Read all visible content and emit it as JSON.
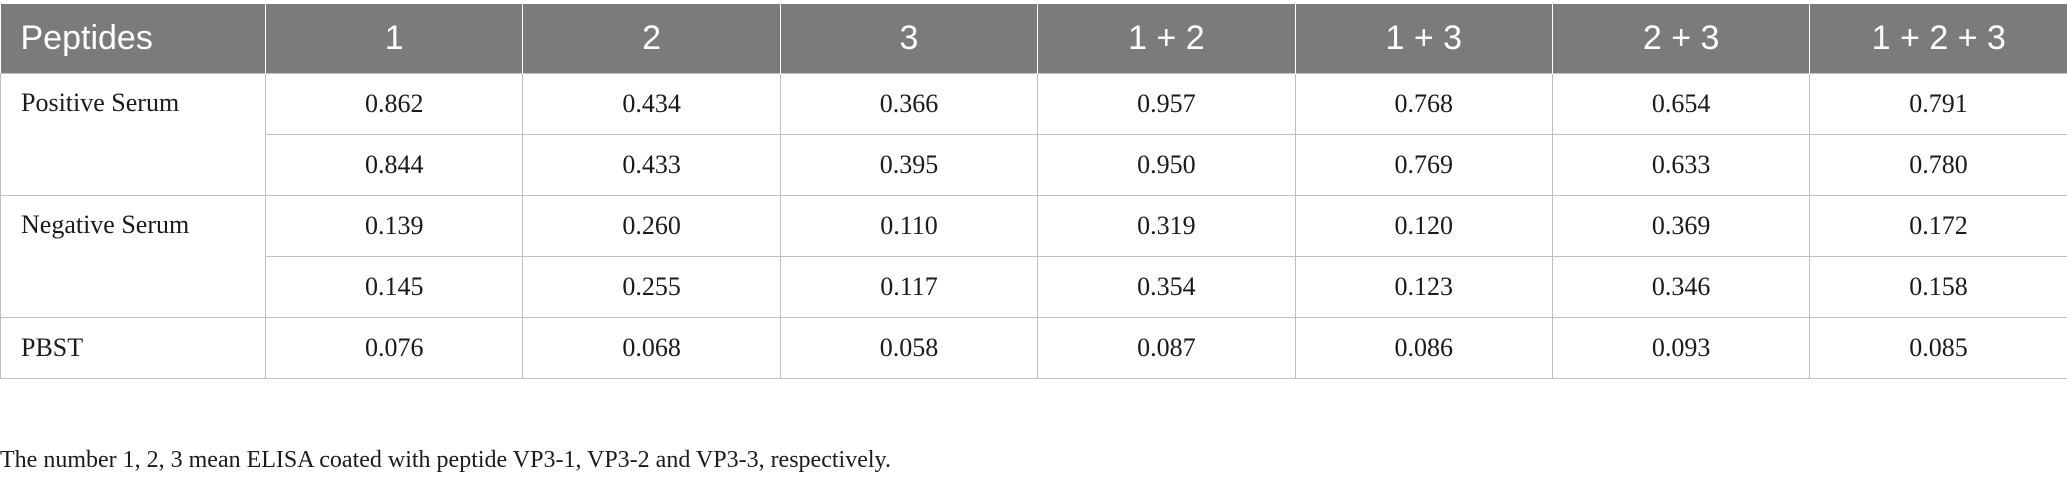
{
  "table": {
    "headers": [
      "Peptides",
      "1",
      "2",
      "3",
      "1 + 2",
      "1 + 3",
      "2 + 3",
      "1 + 2 + 3"
    ],
    "groups": [
      {
        "label": "Positive Serum",
        "rows": [
          [
            "0.862",
            "0.434",
            "0.366",
            "0.957",
            "0.768",
            "0.654",
            "0.791"
          ],
          [
            "0.844",
            "0.433",
            "0.395",
            "0.950",
            "0.769",
            "0.633",
            "0.780"
          ]
        ]
      },
      {
        "label": "Negative Serum",
        "rows": [
          [
            "0.139",
            "0.260",
            "0.110",
            "0.319",
            "0.120",
            "0.369",
            "0.172"
          ],
          [
            "0.145",
            "0.255",
            "0.117",
            "0.354",
            "0.123",
            "0.346",
            "0.158"
          ]
        ]
      },
      {
        "label": "PBST",
        "rows": [
          [
            "0.076",
            "0.068",
            "0.058",
            "0.087",
            "0.086",
            "0.093",
            "0.085"
          ]
        ]
      }
    ]
  },
  "footnote": "The number 1, 2, 3 mean ELISA coated with peptide VP3-1, VP3-2 and VP3-3, respectively."
}
